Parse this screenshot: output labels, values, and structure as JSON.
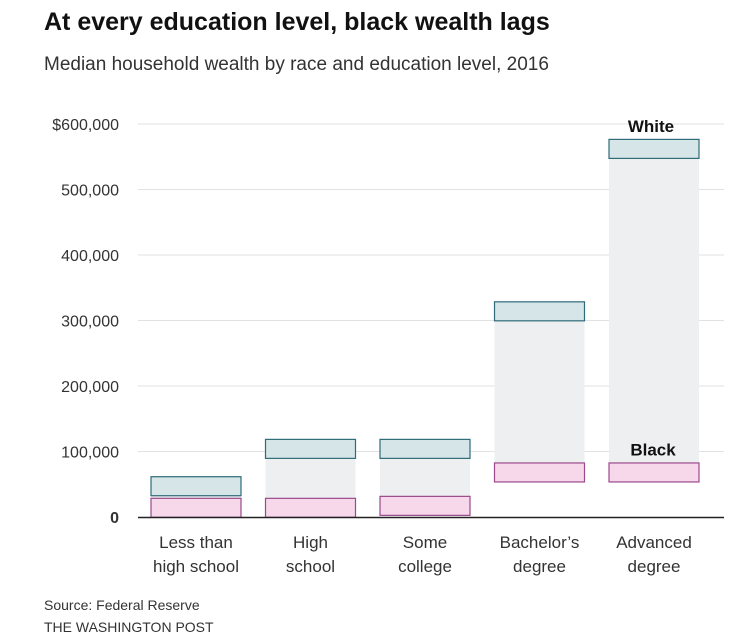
{
  "title": "At every education level, black wealth lags",
  "subtitle": "Median household wealth by race and education level, 2016",
  "source": "Source: Federal Reserve",
  "credit": "THE WASHINGTON POST",
  "colors": {
    "white_fill": "#d5e5e8",
    "white_stroke": "#2f6b78",
    "black_fill": "#f6d8ea",
    "black_stroke": "#9a4a8c",
    "range_fill": "#eeeff1",
    "grid": "#e2e2e2",
    "axis": "#222222"
  },
  "chart_data": {
    "type": "bar",
    "title": "At every education level, black wealth lags",
    "subtitle": "Median household wealth by race and education level, 2016",
    "categories": [
      [
        "Less than",
        "high school"
      ],
      [
        "High",
        "school"
      ],
      [
        "Some",
        "college"
      ],
      [
        "Bachelor’s",
        "degree"
      ],
      [
        "Advanced",
        "degree"
      ]
    ],
    "series": [
      {
        "name": "White",
        "values": [
          47000,
          104000,
          104000,
          314000,
          562000
        ]
      },
      {
        "name": "Black",
        "values": [
          14000,
          14000,
          17000,
          68000,
          68000
        ]
      }
    ],
    "series_labels": [
      "White",
      "Black"
    ],
    "yticks": [
      0,
      100000,
      200000,
      300000,
      400000,
      500000,
      600000
    ],
    "ytick_labels": [
      "0",
      "100,000",
      "200,000",
      "300,000",
      "400,000",
      "500,000",
      "$600,000"
    ],
    "ylim": [
      0,
      600000
    ],
    "grid": true,
    "xlabel": "",
    "ylabel": ""
  }
}
